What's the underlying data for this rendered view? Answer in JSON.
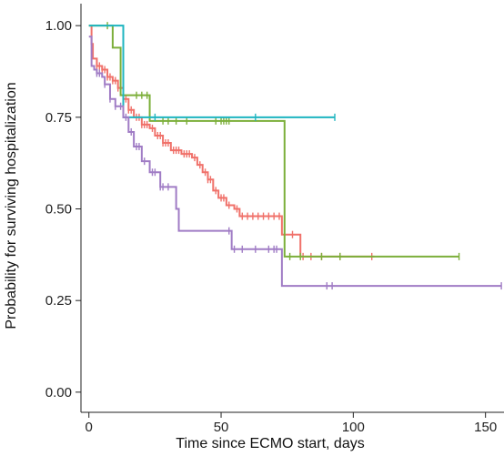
{
  "chart_data": {
    "type": "line",
    "subtype": "kaplan-meier-step",
    "xlabel": "Time since ECMO start, days",
    "ylabel": "Probability for surviving hospitalization",
    "xlim": [
      -3,
      157
    ],
    "ylim": [
      -0.055,
      1.06
    ],
    "x_ticks": [
      0,
      50,
      100,
      150
    ],
    "x_tick_labels": [
      "0",
      "50",
      "100",
      "150"
    ],
    "y_ticks": [
      0.0,
      0.25,
      0.5,
      0.75,
      1.0
    ],
    "y_tick_labels": [
      "0.00",
      "0.25",
      "0.50",
      "0.75",
      "1.00"
    ],
    "grid": false,
    "legend": "none",
    "series": [
      {
        "color": "#f0716a",
        "steps": [
          [
            0,
            1.0
          ],
          [
            1,
            0.95
          ],
          [
            1.5,
            0.91
          ],
          [
            3,
            0.89
          ],
          [
            5,
            0.88
          ],
          [
            7,
            0.86
          ],
          [
            9,
            0.85
          ],
          [
            11,
            0.83
          ],
          [
            13,
            0.8
          ],
          [
            15,
            0.77
          ],
          [
            17,
            0.75
          ],
          [
            20,
            0.73
          ],
          [
            23,
            0.72
          ],
          [
            25,
            0.7
          ],
          [
            28,
            0.68
          ],
          [
            31,
            0.66
          ],
          [
            35,
            0.65
          ],
          [
            39,
            0.64
          ],
          [
            41,
            0.62
          ],
          [
            43,
            0.6
          ],
          [
            45,
            0.58
          ],
          [
            47,
            0.55
          ],
          [
            49,
            0.53
          ],
          [
            52,
            0.51
          ],
          [
            55,
            0.5
          ],
          [
            57,
            0.48
          ],
          [
            73,
            0.43
          ],
          [
            80,
            0.37
          ]
        ],
        "end": 108,
        "censor_x": [
          3,
          4,
          5,
          6,
          7,
          8,
          9,
          10,
          11,
          12,
          14,
          15,
          16,
          18,
          19,
          20,
          21,
          22,
          24,
          26,
          27,
          28,
          29,
          30,
          32,
          33,
          34,
          36,
          37,
          38,
          40,
          42,
          44,
          45,
          46,
          48,
          50,
          51,
          53,
          56,
          58,
          60,
          62,
          64,
          66,
          68,
          70,
          72,
          74,
          77,
          81,
          84,
          88,
          95,
          107
        ]
      },
      {
        "color": "#7caf3a",
        "steps": [
          [
            0,
            1.0
          ],
          [
            9,
            0.94
          ],
          [
            12,
            0.81
          ],
          [
            23,
            0.74
          ],
          [
            74,
            0.37
          ]
        ],
        "end": 140,
        "censor_x": [
          7,
          18,
          20,
          22,
          28,
          30,
          33,
          37,
          48,
          50,
          51,
          52,
          53,
          76,
          80,
          88,
          95,
          140
        ]
      },
      {
        "color": "#1fb5c0",
        "steps": [
          [
            0,
            1.0
          ],
          [
            13,
            0.75
          ]
        ],
        "end": 93,
        "censor_x": [
          25,
          63,
          93
        ]
      },
      {
        "color": "#a07cc5",
        "steps": [
          [
            0,
            0.97
          ],
          [
            1,
            0.89
          ],
          [
            2,
            0.88
          ],
          [
            3,
            0.87
          ],
          [
            5,
            0.86
          ],
          [
            6,
            0.84
          ],
          [
            8,
            0.8
          ],
          [
            10,
            0.78
          ],
          [
            13,
            0.75
          ],
          [
            15,
            0.71
          ],
          [
            17,
            0.67
          ],
          [
            20,
            0.63
          ],
          [
            23,
            0.6
          ],
          [
            27,
            0.56
          ],
          [
            33,
            0.5
          ],
          [
            34,
            0.44
          ],
          [
            54,
            0.39
          ],
          [
            73,
            0.29
          ]
        ],
        "end": 156,
        "censor_x": [
          3,
          4,
          6,
          8,
          10,
          12,
          14,
          16,
          18,
          19,
          21,
          24,
          25,
          27,
          28,
          30,
          53,
          55,
          58,
          63,
          68,
          70,
          71,
          90,
          92,
          156
        ]
      }
    ]
  }
}
